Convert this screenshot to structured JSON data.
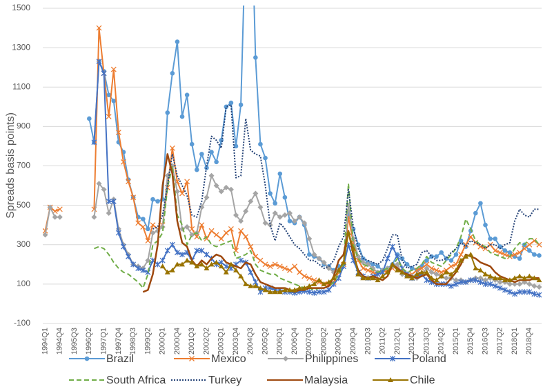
{
  "chart_data": {
    "type": "line",
    "y_label": "Spreads basis points)",
    "categories": [
      "1994Q1",
      null,
      null,
      "1994Q4",
      null,
      null,
      "1995Q3",
      null,
      null,
      "1996Q2",
      null,
      null,
      "1997Q1",
      null,
      null,
      "1997Q4",
      null,
      null,
      "1998Q3",
      null,
      null,
      "1999Q2",
      null,
      null,
      "2000Q1",
      null,
      null,
      "2000Q4",
      null,
      null,
      "2001Q3",
      null,
      null,
      "2002Q2",
      null,
      null,
      "2003Q1",
      null,
      null,
      "2003Q4",
      null,
      null,
      "2004Q3",
      null,
      null,
      "2005Q2",
      null,
      null,
      "2006Q1",
      null,
      null,
      "2006Q4",
      null,
      null,
      "2007Q3",
      null,
      null,
      "2008Q2",
      null,
      null,
      "2009Q1",
      null,
      null,
      "2009Q4",
      null,
      null,
      "2010Q3",
      null,
      null,
      "2011Q2",
      null,
      null,
      "2012Q1",
      null,
      null,
      "2012Q4",
      null,
      null,
      "2013Q3",
      null,
      null,
      "2014Q2",
      null,
      null,
      "2015Q1",
      null,
      null,
      "2015Q4",
      null,
      null,
      "2016Q3",
      null,
      null,
      "2017Q2",
      null,
      null,
      "2018Q1",
      null,
      null,
      "2018Q4",
      null,
      null
    ],
    "ylim": [
      -100,
      1500
    ],
    "yticks": [
      -100,
      100,
      300,
      500,
      700,
      900,
      1100,
      1300,
      1500
    ],
    "grid": true,
    "series": [
      {
        "name": "Brazil",
        "color": "#5b9bd5",
        "marker": "circle",
        "dash": "solid",
        "values": [
          null,
          null,
          null,
          null,
          null,
          null,
          null,
          null,
          null,
          940,
          820,
          1230,
          1180,
          1060,
          1030,
          820,
          770,
          630,
          540,
          440,
          430,
          380,
          530,
          520,
          530,
          970,
          1170,
          1330,
          950,
          1060,
          810,
          680,
          760,
          690,
          770,
          720,
          830,
          1000,
          1020,
          800,
          1010,
          1900,
          2200,
          1250,
          810,
          740,
          560,
          510,
          660,
          540,
          420,
          410,
          440,
          400,
          250,
          240,
          230,
          200,
          190,
          170,
          190,
          200,
          460,
          380,
          300,
          230,
          210,
          200,
          190,
          170,
          180,
          200,
          250,
          230,
          200,
          180,
          170,
          190,
          220,
          240,
          240,
          260,
          230,
          220,
          250,
          320,
          290,
          370,
          460,
          510,
          400,
          330,
          330,
          290,
          270,
          260,
          240,
          230,
          300,
          270,
          250,
          245
        ]
      },
      {
        "name": "Mexico",
        "color": "#ed7d31",
        "marker": "x",
        "dash": "solid",
        "values": [
          370,
          490,
          470,
          480,
          null,
          null,
          null,
          null,
          null,
          null,
          480,
          1400,
          1170,
          950,
          1190,
          870,
          720,
          620,
          540,
          410,
          390,
          320,
          400,
          380,
          400,
          590,
          790,
          620,
          560,
          620,
          380,
          340,
          400,
          330,
          370,
          350,
          330,
          360,
          380,
          270,
          370,
          340,
          290,
          240,
          220,
          200,
          190,
          200,
          190,
          180,
          170,
          190,
          160,
          140,
          130,
          120,
          110,
          100,
          100,
          110,
          160,
          200,
          440,
          310,
          220,
          180,
          170,
          160,
          150,
          160,
          170,
          180,
          190,
          160,
          150,
          150,
          170,
          180,
          200,
          180,
          170,
          160,
          170,
          190,
          200,
          250,
          300,
          340,
          310,
          290,
          280,
          300,
          270,
          260,
          250,
          240,
          250,
          260,
          280,
          300,
          320,
          300
        ]
      },
      {
        "name": "Philippines",
        "color": "#a5a5a5",
        "marker": "diamond",
        "dash": "solid",
        "values": [
          350,
          490,
          440,
          440,
          null,
          null,
          null,
          null,
          null,
          null,
          440,
          610,
          580,
          460,
          530,
          380,
          300,
          250,
          200,
          190,
          180,
          220,
          360,
          370,
          390,
          650,
          700,
          570,
          380,
          390,
          350,
          360,
          490,
          540,
          650,
          600,
          570,
          590,
          580,
          450,
          420,
          470,
          520,
          560,
          490,
          410,
          400,
          460,
          440,
          450,
          460,
          420,
          440,
          410,
          330,
          250,
          230,
          210,
          180,
          160,
          170,
          200,
          500,
          330,
          240,
          210,
          200,
          180,
          160,
          170,
          180,
          190,
          200,
          150,
          150,
          140,
          130,
          150,
          180,
          160,
          150,
          140,
          130,
          130,
          120,
          120,
          110,
          120,
          130,
          130,
          120,
          130,
          120,
          110,
          110,
          100,
          100,
          100,
          110,
          100,
          90,
          85
        ]
      },
      {
        "name": "Poland",
        "color": "#4472c4",
        "marker": "star",
        "dash": "solid",
        "values": [
          null,
          null,
          null,
          null,
          null,
          null,
          null,
          null,
          null,
          null,
          820,
          1230,
          1170,
          520,
          520,
          360,
          290,
          240,
          200,
          180,
          170,
          160,
          220,
          200,
          220,
          270,
          300,
          260,
          250,
          260,
          220,
          270,
          270,
          250,
          230,
          200,
          210,
          190,
          180,
          200,
          220,
          210,
          160,
          110,
          60,
          80,
          80,
          70,
          70,
          60,
          60,
          55,
          60,
          65,
          60,
          55,
          60,
          60,
          70,
          100,
          130,
          190,
          300,
          220,
          160,
          140,
          130,
          140,
          150,
          160,
          230,
          290,
          240,
          180,
          150,
          130,
          140,
          150,
          120,
          110,
          100,
          100,
          100,
          90,
          100,
          110,
          110,
          120,
          120,
          110,
          100,
          100,
          90,
          80,
          70,
          60,
          50,
          60,
          60,
          60,
          50,
          45
        ]
      },
      {
        "name": "South Africa",
        "color": "#70ad47",
        "marker": "none",
        "dash": "dash",
        "values": [
          null,
          null,
          null,
          null,
          null,
          null,
          null,
          null,
          null,
          null,
          280,
          290,
          280,
          250,
          210,
          180,
          160,
          150,
          130,
          110,
          80,
          150,
          300,
          320,
          360,
          590,
          700,
          450,
          400,
          300,
          350,
          360,
          320,
          340,
          300,
          290,
          300,
          310,
          320,
          230,
          240,
          250,
          270,
          200,
          170,
          160,
          150,
          150,
          130,
          120,
          110,
          100,
          90,
          80,
          80,
          70,
          80,
          80,
          90,
          110,
          150,
          200,
          610,
          300,
          230,
          200,
          190,
          170,
          160,
          170,
          180,
          190,
          230,
          180,
          160,
          170,
          180,
          200,
          240,
          210,
          200,
          190,
          220,
          250,
          280,
          340,
          430,
          380,
          320,
          300,
          290,
          260,
          250,
          240,
          230,
          240,
          280,
          310,
          300,
          330,
          330,
          300
        ]
      },
      {
        "name": "Turkey",
        "color": "#264478",
        "marker": "none",
        "dash": "dot",
        "values": [
          null,
          null,
          null,
          null,
          null,
          null,
          null,
          null,
          null,
          null,
          null,
          null,
          null,
          null,
          null,
          null,
          null,
          null,
          null,
          null,
          null,
          null,
          380,
          390,
          450,
          600,
          760,
          650,
          600,
          550,
          450,
          440,
          520,
          700,
          850,
          830,
          790,
          1000,
          1010,
          640,
          650,
          940,
          780,
          760,
          750,
          600,
          400,
          320,
          410,
          380,
          340,
          300,
          280,
          250,
          220,
          220,
          200,
          180,
          190,
          220,
          290,
          340,
          580,
          390,
          280,
          230,
          220,
          210,
          200,
          220,
          280,
          350,
          350,
          220,
          180,
          190,
          200,
          260,
          270,
          240,
          220,
          220,
          230,
          260,
          280,
          310,
          290,
          320,
          310,
          300,
          280,
          300,
          300,
          280,
          300,
          310,
          420,
          480,
          450,
          440,
          480,
          480
        ]
      },
      {
        "name": "Malaysia",
        "color": "#9e480e",
        "marker": "none",
        "dash": "solid",
        "values": [
          null,
          null,
          null,
          null,
          null,
          null,
          null,
          null,
          null,
          null,
          null,
          null,
          null,
          null,
          null,
          null,
          null,
          null,
          null,
          null,
          60,
          70,
          150,
          300,
          600,
          760,
          660,
          420,
          310,
          290,
          220,
          190,
          220,
          200,
          230,
          250,
          240,
          210,
          200,
          190,
          180,
          210,
          200,
          150,
          110,
          100,
          90,
          80,
          80,
          80,
          70,
          60,
          70,
          70,
          80,
          80,
          80,
          80,
          90,
          140,
          220,
          250,
          370,
          250,
          170,
          140,
          130,
          140,
          130,
          120,
          140,
          200,
          180,
          160,
          150,
          140,
          130,
          140,
          150,
          120,
          100,
          100,
          100,
          130,
          160,
          200,
          250,
          240,
          230,
          210,
          200,
          190,
          160,
          140,
          130,
          120,
          110,
          120,
          120,
          120,
          130,
          130
        ]
      },
      {
        "name": "Chile",
        "color": "#997300",
        "marker": "triangle",
        "dash": "solid",
        "values": [
          null,
          null,
          null,
          null,
          null,
          null,
          null,
          null,
          null,
          null,
          null,
          null,
          null,
          null,
          null,
          null,
          null,
          null,
          null,
          null,
          null,
          null,
          null,
          null,
          190,
          160,
          170,
          200,
          200,
          220,
          210,
          190,
          200,
          180,
          200,
          210,
          190,
          160,
          200,
          170,
          140,
          100,
          90,
          90,
          80,
          70,
          60,
          60,
          60,
          70,
          70,
          70,
          80,
          80,
          90,
          100,
          120,
          100,
          110,
          130,
          170,
          210,
          360,
          280,
          150,
          130,
          130,
          130,
          120,
          140,
          160,
          200,
          170,
          160,
          140,
          130,
          150,
          160,
          160,
          130,
          120,
          140,
          160,
          150,
          170,
          220,
          240,
          250,
          180,
          170,
          150,
          140,
          130,
          130,
          120,
          120,
          130,
          140,
          130,
          140,
          130,
          120
        ]
      }
    ]
  }
}
